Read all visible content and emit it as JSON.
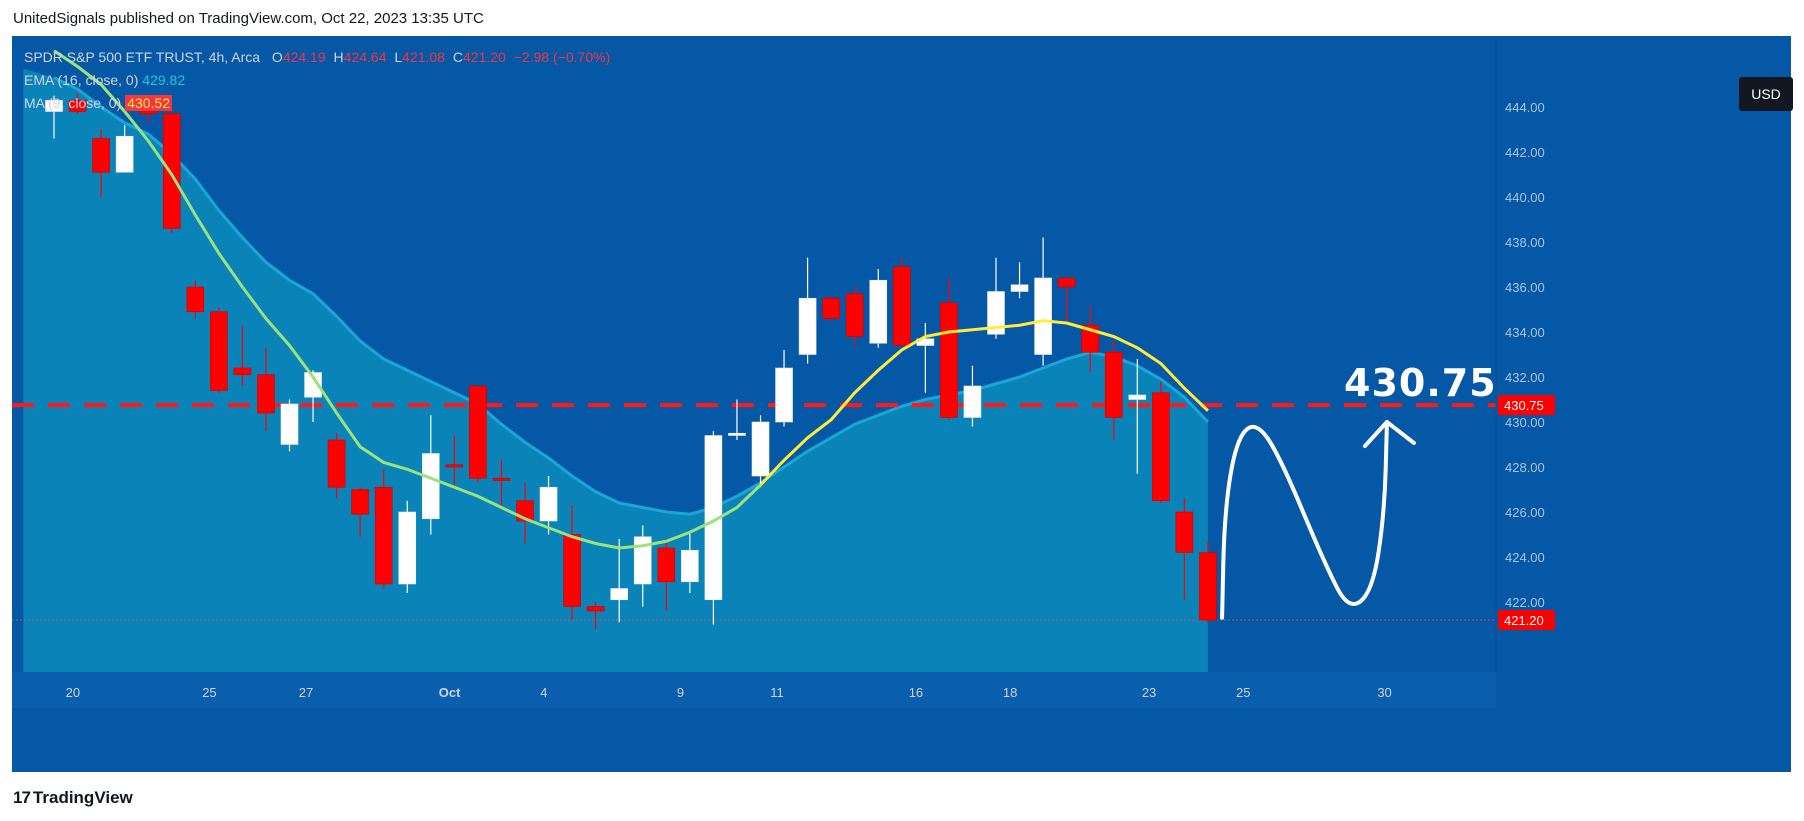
{
  "publish_line": "UnitedSignals published on TradingView.com, Oct 22, 2023 13:35 UTC",
  "legend": {
    "symbol": "SPDR S&P 500 ETF TRUST, 4h, Arca",
    "o_label": "O",
    "o_value": "424.19",
    "h_label": "H",
    "h_value": "424.64",
    "l_label": "L",
    "l_value": "421.08",
    "c_label": "C",
    "c_value": "421.20",
    "change": "−2.98 (−0.70%)",
    "ema_label": "EMA (16, close, 0)",
    "ema_value": "429.82",
    "ma_label": "MA (9, close, 0)",
    "ma_value": "430.52"
  },
  "currency_button": "USD",
  "footer": {
    "logo_text": "TradingView",
    "logo_mark": "17"
  },
  "colors": {
    "background": "#0458a6",
    "band_fill": "#0a86b8",
    "up_candle": "#ffffff",
    "down_candle": "#ff0000",
    "ema": "#9be27d",
    "ma": "#ffeb3b",
    "target_line": "#ff1a1a",
    "price_label": "#ff0000",
    "axis_text": "#d1d4dc",
    "axis_bg": "#0458a6",
    "drawing": "#ffffff"
  },
  "chart_data": {
    "type": "candlestick",
    "title": "",
    "ylim": [
      420.3,
      444.9
    ],
    "y_ticks": [
      "444.00",
      "442.00",
      "440.00",
      "438.00",
      "436.00",
      "434.00",
      "432.00",
      "430.00",
      "428.00",
      "426.00",
      "424.00",
      "422.00"
    ],
    "x_ticks": [
      {
        "label": "18",
        "index": -3.5
      },
      {
        "label": "20",
        "index": 0.8
      },
      {
        "label": "25",
        "index": 6.6
      },
      {
        "label": "27",
        "index": 10.7
      },
      {
        "label": "Oct",
        "index": 16.8
      },
      {
        "label": "4",
        "index": 20.8
      },
      {
        "label": "9",
        "index": 26.6
      },
      {
        "label": "11",
        "index": 30.7
      },
      {
        "label": "16",
        "index": 36.6
      },
      {
        "label": "18",
        "index": 40.6
      },
      {
        "label": "23",
        "index": 46.5
      },
      {
        "label": "25",
        "index": 50.5
      },
      {
        "label": "30",
        "index": 56.5
      }
    ],
    "candles": [
      {
        "o": 443.8,
        "h": 444.5,
        "l": 442.6,
        "c": 444.3
      },
      {
        "o": 444.3,
        "h": 444.6,
        "l": 443.7,
        "c": 443.8
      },
      {
        "o": 442.6,
        "h": 443.0,
        "l": 440.0,
        "c": 441.1
      },
      {
        "o": 441.1,
        "h": 443.2,
        "l": 441.1,
        "c": 442.7
      },
      {
        "o": 444.0,
        "h": 444.3,
        "l": 443.3,
        "c": 443.7
      },
      {
        "o": 443.7,
        "h": 444.0,
        "l": 438.4,
        "c": 438.6
      },
      {
        "o": 436.0,
        "h": 436.3,
        "l": 434.6,
        "c": 434.9
      },
      {
        "o": 434.9,
        "h": 435.1,
        "l": 431.3,
        "c": 431.4
      },
      {
        "o": 432.4,
        "h": 434.3,
        "l": 431.6,
        "c": 432.1
      },
      {
        "o": 432.1,
        "h": 433.3,
        "l": 429.6,
        "c": 430.4
      },
      {
        "o": 429.0,
        "h": 431.0,
        "l": 428.7,
        "c": 430.8
      },
      {
        "o": 431.1,
        "h": 432.3,
        "l": 430.0,
        "c": 432.2
      },
      {
        "o": 429.2,
        "h": 429.5,
        "l": 426.6,
        "c": 427.1
      },
      {
        "o": 427.0,
        "h": 427.1,
        "l": 424.9,
        "c": 425.9
      },
      {
        "o": 427.1,
        "h": 427.9,
        "l": 422.6,
        "c": 422.8
      },
      {
        "o": 422.8,
        "h": 426.5,
        "l": 422.4,
        "c": 426.0
      },
      {
        "o": 425.7,
        "h": 430.3,
        "l": 425.0,
        "c": 428.6
      },
      {
        "o": 428.1,
        "h": 429.4,
        "l": 427.1,
        "c": 428.0
      },
      {
        "o": 431.6,
        "h": 431.6,
        "l": 427.3,
        "c": 427.5
      },
      {
        "o": 427.5,
        "h": 428.3,
        "l": 426.2,
        "c": 427.4
      },
      {
        "o": 426.5,
        "h": 427.3,
        "l": 424.6,
        "c": 425.6
      },
      {
        "o": 425.6,
        "h": 427.6,
        "l": 425.0,
        "c": 427.1
      },
      {
        "o": 425.0,
        "h": 426.3,
        "l": 421.2,
        "c": 421.8
      },
      {
        "o": 421.8,
        "h": 422.0,
        "l": 420.8,
        "c": 421.6
      },
      {
        "o": 422.1,
        "h": 424.8,
        "l": 421.1,
        "c": 422.6
      },
      {
        "o": 422.8,
        "h": 425.4,
        "l": 421.8,
        "c": 424.9
      },
      {
        "o": 424.4,
        "h": 424.8,
        "l": 421.6,
        "c": 422.9
      },
      {
        "o": 422.9,
        "h": 425.1,
        "l": 422.4,
        "c": 424.3
      },
      {
        "o": 422.1,
        "h": 429.6,
        "l": 421.0,
        "c": 429.4
      },
      {
        "o": 429.4,
        "h": 431.0,
        "l": 429.2,
        "c": 429.5
      },
      {
        "o": 427.6,
        "h": 430.3,
        "l": 427.1,
        "c": 430.0
      },
      {
        "o": 430.0,
        "h": 433.2,
        "l": 429.8,
        "c": 432.4
      },
      {
        "o": 433.0,
        "h": 437.3,
        "l": 432.6,
        "c": 435.5
      },
      {
        "o": 435.5,
        "h": 435.6,
        "l": 434.5,
        "c": 434.6
      },
      {
        "o": 435.7,
        "h": 436.0,
        "l": 433.4,
        "c": 433.8
      },
      {
        "o": 433.5,
        "h": 436.8,
        "l": 433.3,
        "c": 436.3
      },
      {
        "o": 436.9,
        "h": 437.3,
        "l": 433.5,
        "c": 433.4
      },
      {
        "o": 433.4,
        "h": 434.4,
        "l": 431.3,
        "c": 433.7
      },
      {
        "o": 435.3,
        "h": 436.4,
        "l": 430.1,
        "c": 430.2
      },
      {
        "o": 430.2,
        "h": 432.5,
        "l": 429.8,
        "c": 431.6
      },
      {
        "o": 433.9,
        "h": 437.3,
        "l": 433.7,
        "c": 435.8
      },
      {
        "o": 435.8,
        "h": 437.1,
        "l": 435.5,
        "c": 436.1
      },
      {
        "o": 433.0,
        "h": 438.2,
        "l": 432.5,
        "c": 436.4
      },
      {
        "o": 436.4,
        "h": 436.4,
        "l": 434.3,
        "c": 436.0
      },
      {
        "o": 434.3,
        "h": 435.2,
        "l": 432.2,
        "c": 433.1
      },
      {
        "o": 433.1,
        "h": 433.6,
        "l": 429.2,
        "c": 430.2
      },
      {
        "o": 431.0,
        "h": 432.8,
        "l": 427.7,
        "c": 431.2
      },
      {
        "o": 431.3,
        "h": 431.8,
        "l": 426.4,
        "c": 426.5
      },
      {
        "o": 426.0,
        "h": 426.6,
        "l": 422.1,
        "c": 424.2
      },
      {
        "o": 424.19,
        "h": 424.64,
        "l": 421.08,
        "c": 421.2
      }
    ],
    "series": [
      {
        "name": "EMA (16, close, 0)",
        "kind": "line",
        "last": 429.82,
        "values": [
          445.3,
          444.8,
          444.0,
          443.3,
          442.8,
          441.9,
          440.8,
          439.4,
          438.2,
          437.1,
          436.3,
          435.7,
          434.7,
          433.6,
          432.8,
          432.3,
          431.8,
          431.3,
          430.8,
          429.9,
          429.1,
          428.4,
          427.6,
          426.9,
          426.4,
          426.2,
          426.0,
          425.9,
          426.2,
          426.7,
          427.3,
          428.0,
          428.7,
          429.3,
          429.9,
          430.3,
          430.7,
          431.0,
          431.2,
          431.4,
          431.7,
          432.0,
          432.4,
          432.8,
          433.1,
          432.9,
          432.5,
          431.9,
          431.1,
          430.0
        ]
      },
      {
        "name": "MA (9, close, 0)",
        "kind": "line",
        "last": 430.52,
        "values": [
          446.5,
          445.8,
          445.0,
          443.8,
          442.5,
          441.0,
          439.2,
          437.5,
          436.0,
          434.6,
          433.4,
          432.0,
          430.4,
          428.9,
          428.2,
          427.9,
          427.5,
          427.1,
          426.7,
          426.2,
          425.7,
          425.3,
          424.9,
          424.6,
          424.4,
          424.5,
          424.7,
          425.1,
          425.6,
          426.2,
          427.2,
          428.3,
          429.3,
          430.1,
          431.3,
          432.3,
          433.2,
          433.8,
          434.0,
          434.1,
          434.2,
          434.3,
          434.5,
          434.4,
          434.1,
          433.8,
          433.3,
          432.6,
          431.5,
          430.5
        ]
      }
    ],
    "target_level": 430.75,
    "target_label": "430.75",
    "last_price_label": "421.20",
    "forecast_path": [
      {
        "i": 49.6,
        "p": 421.3
      },
      {
        "i": 49.7,
        "p": 426.0
      },
      {
        "i": 50.2,
        "p": 429.2
      },
      {
        "i": 51.0,
        "p": 430.05
      },
      {
        "i": 52.0,
        "p": 428.6
      },
      {
        "i": 54.0,
        "p": 423.6
      },
      {
        "i": 55.0,
        "p": 421.6
      },
      {
        "i": 56.0,
        "p": 422.5
      },
      {
        "i": 56.5,
        "p": 426.0
      },
      {
        "i": 56.6,
        "p": 430.0
      }
    ],
    "forecast_arrow_tip": {
      "i": 56.6,
      "p": 430.0
    }
  }
}
